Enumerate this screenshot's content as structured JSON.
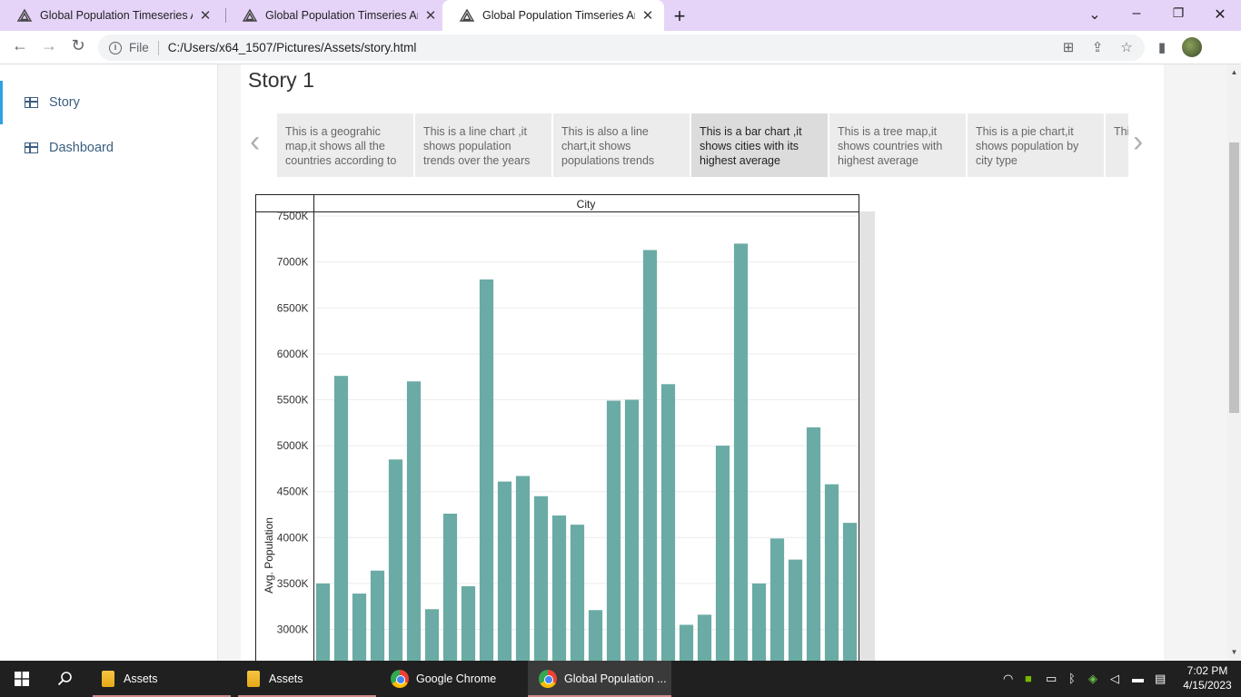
{
  "browser": {
    "tabs": [
      {
        "title": "Global Population Timeseries Ana",
        "active": false
      },
      {
        "title": "Global Population Timseries Anal",
        "active": false
      },
      {
        "title": "Global Population Timseries Anal",
        "active": true
      }
    ],
    "address": {
      "scheme_label": "File",
      "path": "C:/Users/x64_1507/Pictures/Assets/story.html"
    }
  },
  "sidebar": {
    "items": [
      {
        "label": "Story",
        "active": true
      },
      {
        "label": "Dashboard",
        "active": false
      }
    ]
  },
  "story": {
    "title": "Story 1",
    "points": [
      "This is a geograhic map,it shows all the countries according to",
      "This is a line chart ,it shows population trends over the years",
      "This is also a line chart,it shows populations trends",
      "This is a bar chart ,it shows cities with its highest average",
      "This is a tree map,it shows countries with highest average",
      "This is a pie chart,it shows population by city type",
      "This is exp pop"
    ],
    "active_point": 3
  },
  "chart_data": {
    "type": "bar",
    "header_label": "City",
    "ylabel": "Avg. Population",
    "y_ticks": [
      "7500K",
      "7000K",
      "6500K",
      "6000K",
      "5500K",
      "5000K",
      "4500K",
      "4000K",
      "3500K",
      "3000K"
    ],
    "y_tick_values": [
      7500,
      7000,
      6500,
      6000,
      5500,
      5000,
      4500,
      4000,
      3500,
      3000
    ],
    "ylim": [
      2600,
      7550
    ],
    "values": [
      3500,
      5760,
      3390,
      3640,
      4850,
      5700,
      3220,
      4260,
      3470,
      6810,
      4610,
      4670,
      4450,
      4240,
      4140,
      3210,
      5490,
      5500,
      7130,
      5670,
      3050,
      3160,
      5000,
      7200,
      3500,
      3990,
      3760,
      5200,
      4580,
      4160
    ],
    "bar_color": "#6aaba5",
    "grid": true
  },
  "taskbar": {
    "items": [
      {
        "label": "Assets",
        "kind": "folder"
      },
      {
        "label": "Assets",
        "kind": "folder"
      },
      {
        "label": "Google Chrome",
        "kind": "chrome"
      },
      {
        "label": "Global Population ...",
        "kind": "chrome"
      }
    ],
    "time": "7:02 PM",
    "date": "4/15/2023"
  }
}
